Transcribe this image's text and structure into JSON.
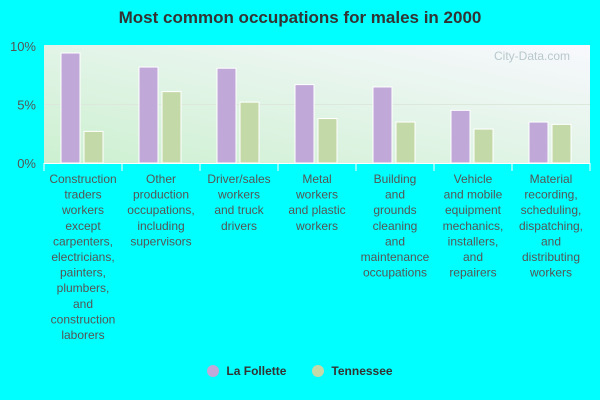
{
  "chart_data": {
    "type": "bar",
    "title": "Most common occupations for males in 2000",
    "categories": [
      "Construction traders workers except carpenters, electricians, painters, plumbers, and construction laborers",
      "Other production occupations, including supervisors",
      "Driver/sales workers and truck drivers",
      "Metal workers and plastic workers",
      "Building and grounds cleaning and maintenance occupations",
      "Vehicle and mobile equipment mechanics, installers, and repairers",
      "Material recording, scheduling, dispatching, and distributing workers"
    ],
    "category_lines": [
      [
        "Construction",
        "traders",
        "workers",
        "except",
        "carpenters,",
        "electricians,",
        "painters,",
        "plumbers,",
        "and",
        "construction",
        "laborers"
      ],
      [
        "Other",
        "production",
        "occupations,",
        "including",
        "supervisors"
      ],
      [
        "Driver/sales",
        "workers",
        "and truck",
        "drivers"
      ],
      [
        "Metal",
        "workers",
        "and plastic",
        "workers"
      ],
      [
        "Building",
        "and",
        "grounds",
        "cleaning",
        "and",
        "maintenance",
        "occupations"
      ],
      [
        "Vehicle",
        "and mobile",
        "equipment",
        "mechanics,",
        "installers,",
        "and",
        "repairers"
      ],
      [
        "Material",
        "recording,",
        "scheduling,",
        "dispatching,",
        "and",
        "distributing",
        "workers"
      ]
    ],
    "series": [
      {
        "name": "La Follette",
        "color": "#c0a8d8",
        "values": [
          9.4,
          8.2,
          8.1,
          6.7,
          6.5,
          4.5,
          3.5
        ]
      },
      {
        "name": "Tennessee",
        "color": "#c4d9a8",
        "values": [
          2.7,
          6.1,
          5.2,
          3.8,
          3.5,
          2.9,
          3.3
        ]
      }
    ],
    "ylim": [
      0,
      10
    ],
    "yticks": [
      "0%",
      "5%",
      "10%"
    ],
    "ytick_values": [
      0,
      5,
      10
    ],
    "grid": true,
    "legend": "bottom",
    "watermark": "City-Data.com"
  }
}
